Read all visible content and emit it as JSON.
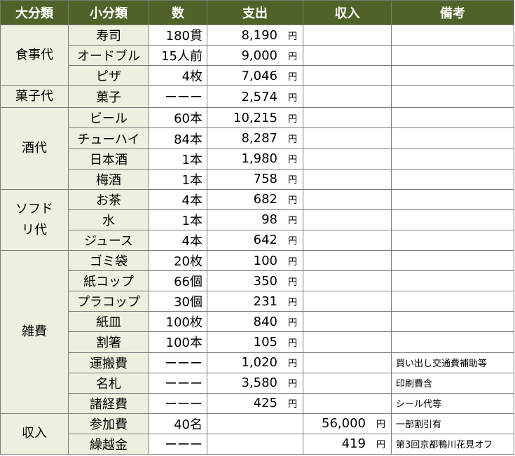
{
  "headers": [
    "大分類",
    "小分類",
    "数",
    "支出",
    "収入",
    "備考"
  ],
  "currency": "円",
  "groups": [
    {
      "name": "食事代",
      "rows": [
        {
          "sub": "寿司",
          "qty": "180貫",
          "exp": "8,190",
          "inc": "",
          "note": ""
        },
        {
          "sub": "オードブル",
          "qty": "15人前",
          "exp": "9,000",
          "inc": "",
          "note": ""
        },
        {
          "sub": "ピザ",
          "qty": "4枚",
          "exp": "7,046",
          "inc": "",
          "note": ""
        }
      ]
    },
    {
      "name": "菓子代",
      "rows": [
        {
          "sub": "菓子",
          "qty": "ーーー",
          "exp": "2,574",
          "inc": "",
          "note": ""
        }
      ]
    },
    {
      "name": "酒代",
      "rows": [
        {
          "sub": "ビール",
          "qty": "60本",
          "exp": "10,215",
          "inc": "",
          "note": ""
        },
        {
          "sub": "チューハイ",
          "qty": "84本",
          "exp": "8,287",
          "inc": "",
          "note": ""
        },
        {
          "sub": "日本酒",
          "qty": "1本",
          "exp": "1,980",
          "inc": "",
          "note": ""
        },
        {
          "sub": "梅酒",
          "qty": "1本",
          "exp": "758",
          "inc": "",
          "note": ""
        }
      ]
    },
    {
      "name": "ソフドリ代",
      "rows": [
        {
          "sub": "お茶",
          "qty": "4本",
          "exp": "682",
          "inc": "",
          "note": ""
        },
        {
          "sub": "水",
          "qty": "1本",
          "exp": "98",
          "inc": "",
          "note": ""
        },
        {
          "sub": "ジュース",
          "qty": "4本",
          "exp": "642",
          "inc": "",
          "note": ""
        }
      ]
    },
    {
      "name": "雑費",
      "rows": [
        {
          "sub": "ゴミ袋",
          "qty": "20枚",
          "exp": "100",
          "inc": "",
          "note": ""
        },
        {
          "sub": "紙コップ",
          "qty": "66個",
          "exp": "350",
          "inc": "",
          "note": ""
        },
        {
          "sub": "プラコップ",
          "qty": "30個",
          "exp": "231",
          "inc": "",
          "note": ""
        },
        {
          "sub": "紙皿",
          "qty": "100枚",
          "exp": "840",
          "inc": "",
          "note": ""
        },
        {
          "sub": "割箸",
          "qty": "100本",
          "exp": "105",
          "inc": "",
          "note": ""
        },
        {
          "sub": "運搬費",
          "qty": "ーーー",
          "exp": "1,020",
          "inc": "",
          "note": "買い出し交通費補助等"
        },
        {
          "sub": "名札",
          "qty": "ーーー",
          "exp": "3,580",
          "inc": "",
          "note": "印刷費含"
        },
        {
          "sub": "諸経費",
          "qty": "ーーー",
          "exp": "425",
          "inc": "",
          "note": "シール代等"
        }
      ]
    },
    {
      "name": "収入",
      "rows": [
        {
          "sub": "参加費",
          "qty": "40名",
          "exp": "",
          "inc": "56,000",
          "note": "一部割引有"
        },
        {
          "sub": "繰越金",
          "qty": "ーーー",
          "exp": "",
          "inc": "419",
          "note": "第3回京都鴨川花見オフ"
        }
      ]
    }
  ]
}
